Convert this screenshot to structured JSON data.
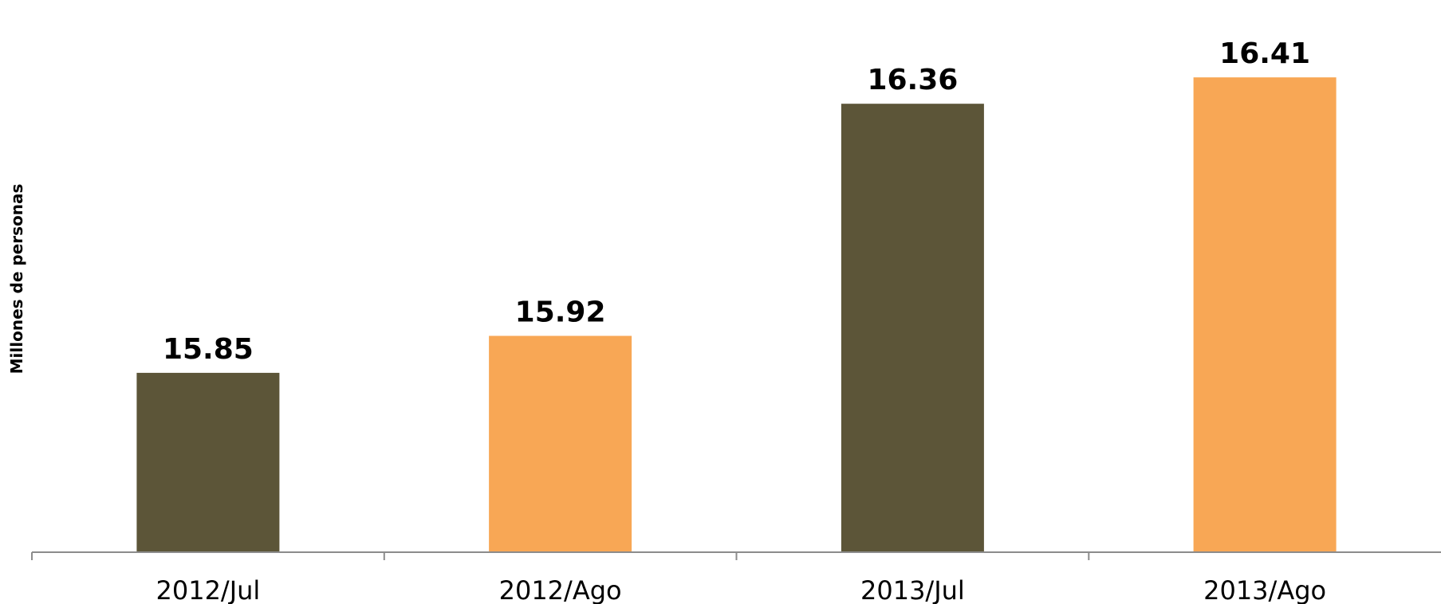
{
  "chart_data": {
    "type": "bar",
    "categories": [
      "2012/Jul",
      "2012/Ago",
      "2013/Jul",
      "2013/Ago"
    ],
    "values": [
      15.85,
      15.92,
      16.36,
      16.41
    ],
    "value_labels": [
      "15.85",
      "15.92",
      "16.36",
      "16.41"
    ],
    "colors": [
      "#5c5538",
      "#f8a755",
      "#5c5538",
      "#f8a755"
    ],
    "title": "",
    "xlabel": "",
    "ylabel": "Millones de personas",
    "ylim": [
      15.51,
      16.46
    ],
    "grid": false,
    "legend": "none"
  }
}
